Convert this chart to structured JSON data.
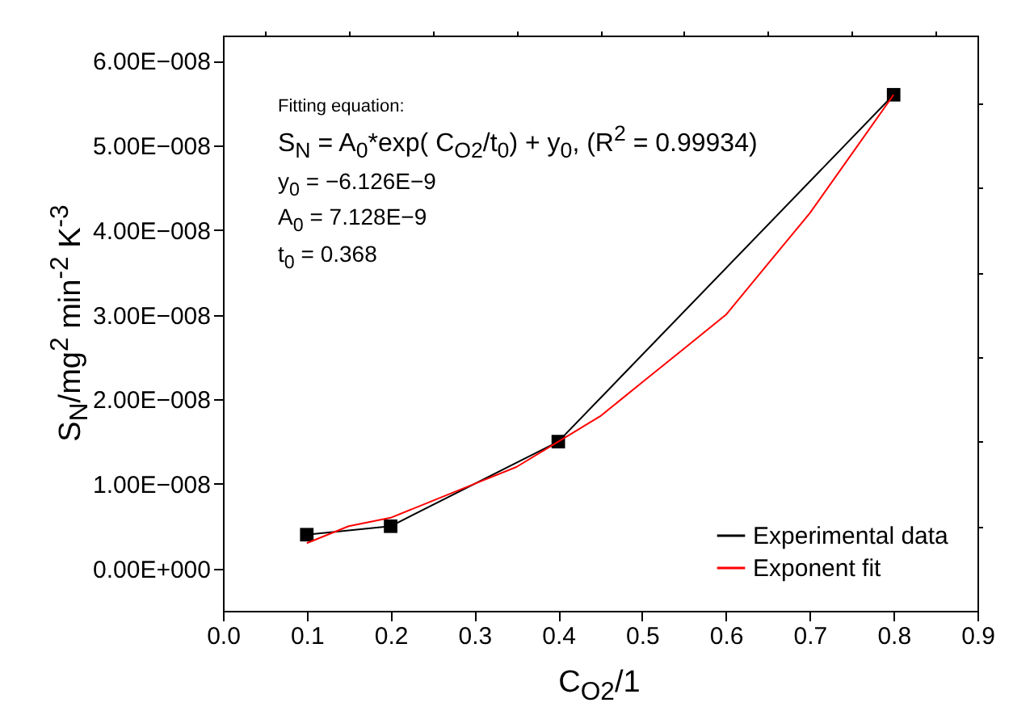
{
  "chart_data": {
    "type": "line",
    "xlabel": "C$_{O2}$/1",
    "ylabel": "S$_{N}$/mg$^{2}$ min$^{-2}$ K$^{-3}$",
    "x": [
      0.1,
      0.2,
      0.4,
      0.8
    ],
    "series": [
      {
        "name": "Experimental data",
        "color": "#000000",
        "values": [
          4e-09,
          5e-09,
          1.5e-08,
          5.6e-08
        ]
      },
      {
        "name": "Exponent fit",
        "color": "#ff0000",
        "type": "line",
        "marker": "none",
        "x": [
          0.1,
          0.15,
          0.2,
          0.25,
          0.3,
          0.35,
          0.4,
          0.45,
          0.5,
          0.55,
          0.6,
          0.65,
          0.7,
          0.75,
          0.8
        ],
        "values": [
          3e-09,
          5e-09,
          6e-09,
          8e-09,
          1e-08,
          1.2e-08,
          1.5e-08,
          1.8e-08,
          2.2e-08,
          2.6e-08,
          3e-08,
          3.6e-08,
          4.2e-08,
          4.9e-08,
          5.6e-08
        ]
      }
    ],
    "xlim": [
      0,
      0.9
    ],
    "xticks": [
      {
        "value": 0,
        "label": "0.0"
      },
      {
        "value": 0.05,
        "label": null
      },
      0.1,
      {
        "value": 0.15,
        "label": null
      },
      0.2,
      {
        "value": 0.25,
        "label": null
      },
      0.3,
      {
        "value": 0.35,
        "label": null
      },
      0.4,
      {
        "value": 0.45,
        "label": null
      },
      0.5,
      {
        "value": 0.55,
        "label": null
      },
      0.6,
      {
        "value": 0.65,
        "label": null
      },
      0.7,
      {
        "value": 0.75,
        "label": null
      },
      0.8,
      {
        "value": 0.85,
        "label": null
      },
      0.9
    ],
    "ylim": [
      -5e-09,
      6.3e-08
    ],
    "yticks": [
      {
        "value": 0,
        "label": "0.00E+000"
      },
      {
        "value": 5e-09,
        "label": null
      },
      {
        "value": 1e-08,
        "label": "1.00E−008"
      },
      {
        "value": 1.5e-08,
        "label": null
      },
      {
        "value": 2e-08,
        "label": "2.00E−008"
      },
      {
        "value": 2.5e-08,
        "label": null
      },
      {
        "value": 3e-08,
        "label": "3.00E−008"
      },
      {
        "value": 3.5e-08,
        "label": null
      },
      {
        "value": 4e-08,
        "label": "4.00E−008"
      },
      {
        "value": 4.5e-08,
        "label": null
      },
      {
        "value": 5e-08,
        "label": "5.00E−008"
      },
      {
        "value": 5.5e-08,
        "label": null
      },
      {
        "value": 6e-08,
        "label": "6.00E−008"
      }
    ],
    "annotations": [
      "Fitting equation:",
      "S$_{N}$ = A$_{0}$*exp( C$_{O2}$/t$_{0}$) + y$_{0}$,  (R$^{2}$ = 0.99934)",
      "y$_{0}$ = −6.126E−9",
      "A$_{0}$ = 7.128E−9",
      "t$_{0}$ = 0.368"
    ],
    "legend": "bottom right",
    "marker": "square",
    "line_style": "solid",
    "grid": false
  }
}
